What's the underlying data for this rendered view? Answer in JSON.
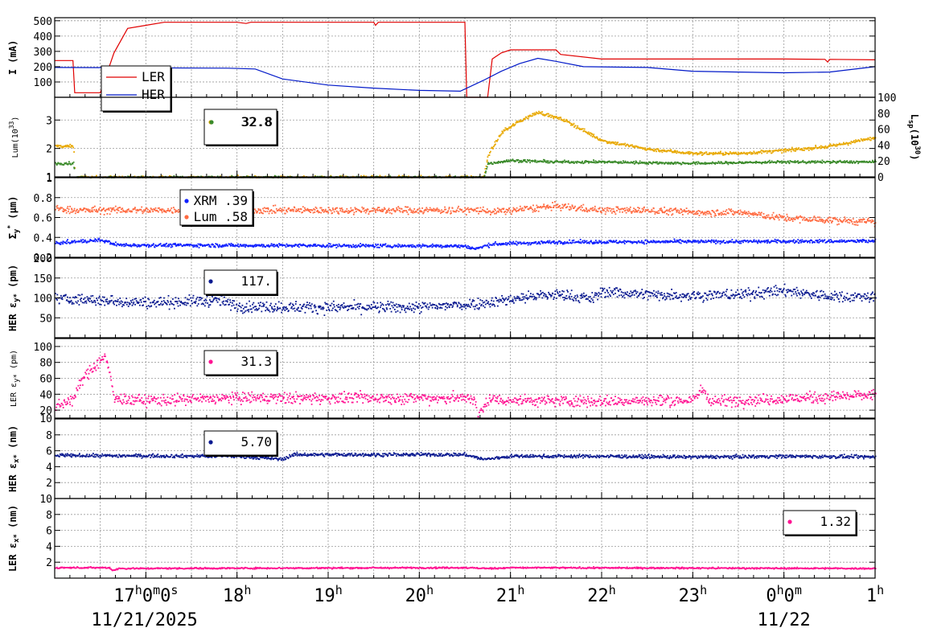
{
  "colors": {
    "ler_current": "#e00000",
    "her_current": "#0018c8",
    "lum_yellow": "#e8a800",
    "lum_green": "#3a8a2a",
    "sigma_xrm": "#1020ff",
    "sigma_lum": "#ff6a40",
    "her_navy": "#0a1a90",
    "ler_pink": "#ff1493",
    "grid": "#9a9a9a"
  },
  "chart_data": {
    "type": "line",
    "x_axis": {
      "range_hours": [
        16.0,
        25.0
      ],
      "ticks": [
        {
          "t": 17,
          "label": "17",
          "sup": "h",
          "extra": [
            {
              "v": "0",
              "s": "m"
            },
            {
              "v": "0",
              "s": "s"
            }
          ]
        },
        {
          "t": 18,
          "label": "18",
          "sup": "h"
        },
        {
          "t": 19,
          "label": "19",
          "sup": "h"
        },
        {
          "t": 20,
          "label": "20",
          "sup": "h"
        },
        {
          "t": 21,
          "label": "21",
          "sup": "h"
        },
        {
          "t": 22,
          "label": "22",
          "sup": "h"
        },
        {
          "t": 23,
          "label": "23",
          "sup": "h"
        },
        {
          "t": 24,
          "label": "0",
          "sup": "h",
          "extra": [
            {
              "v": "0",
              "s": "m"
            }
          ]
        },
        {
          "t": 25,
          "label": "1",
          "sup": "h"
        }
      ],
      "dates": [
        {
          "t": 16.4,
          "label": "11/21/2025"
        },
        {
          "t": 24.0,
          "label": "11/22"
        }
      ]
    },
    "panels": [
      {
        "id": "current",
        "ylabel": "I (mA)",
        "ylim": [
          0,
          520
        ],
        "yticks": [
          100,
          200,
          300,
          400,
          500
        ],
        "legend": {
          "type": "lines",
          "placement": "bottom-left",
          "entries": [
            "LER",
            "HER"
          ]
        },
        "series": [
          {
            "name": "LER",
            "color_key": "ler_current",
            "points": [
              [
                16.0,
                240
              ],
              [
                16.2,
                240
              ],
              [
                16.22,
                30
              ],
              [
                16.5,
                30
              ],
              [
                16.65,
                290
              ],
              [
                16.8,
                450
              ],
              [
                17.0,
                470
              ],
              [
                17.2,
                490
              ],
              [
                18.0,
                490
              ],
              [
                18.1,
                482
              ],
              [
                18.15,
                490
              ],
              [
                19.5,
                490
              ],
              [
                19.52,
                470
              ],
              [
                19.55,
                490
              ],
              [
                20.5,
                490
              ],
              [
                20.52,
                0
              ],
              [
                20.75,
                0
              ],
              [
                20.8,
                250
              ],
              [
                20.9,
                290
              ],
              [
                21.0,
                310
              ],
              [
                21.5,
                310
              ],
              [
                21.55,
                280
              ],
              [
                22.0,
                250
              ],
              [
                24.0,
                250
              ],
              [
                24.45,
                248
              ],
              [
                24.48,
                230
              ],
              [
                24.5,
                248
              ],
              [
                25.0,
                245
              ]
            ]
          },
          {
            "name": "HER",
            "color_key": "her_current",
            "points": [
              [
                16.0,
                195
              ],
              [
                17.9,
                190
              ],
              [
                18.2,
                185
              ],
              [
                18.5,
                120
              ],
              [
                19.0,
                80
              ],
              [
                19.5,
                60
              ],
              [
                20.0,
                45
              ],
              [
                20.45,
                40
              ],
              [
                20.7,
                110
              ],
              [
                20.9,
                170
              ],
              [
                21.1,
                220
              ],
              [
                21.3,
                255
              ],
              [
                21.5,
                235
              ],
              [
                21.8,
                200
              ],
              [
                22.5,
                195
              ],
              [
                23.0,
                170
              ],
              [
                23.5,
                165
              ],
              [
                24.0,
                160
              ],
              [
                24.5,
                165
              ],
              [
                25.0,
                200
              ]
            ]
          }
        ]
      },
      {
        "id": "lum",
        "ylabel": "Lum(10",
        "ylabel_sup": "33",
        "ylabel_end": ")",
        "ylim": [
          1,
          3.8
        ],
        "yticks": [
          1,
          2,
          3
        ],
        "right_axis": {
          "label": "L",
          "sub": "sp",
          "sup": "30",
          "ticks": [
            0,
            20,
            40,
            60,
            80,
            100
          ],
          "range": [
            0,
            100
          ]
        },
        "legend": {
          "type": "dots",
          "entries": [
            {
              "color_key": "lum_yellow",
              "label": "32.8"
            },
            {
              "color_key": "lum_green",
              "label": "32.8"
            }
          ]
        },
        "series": [
          {
            "name": "yellow",
            "color_key": "lum_yellow",
            "noise": 0.05,
            "points": [
              [
                16.0,
                2.1
              ],
              [
                16.2,
                2.1
              ],
              [
                16.22,
                1.0
              ],
              [
                20.7,
                1.0
              ],
              [
                20.75,
                1.8
              ],
              [
                20.9,
                2.6
              ],
              [
                21.1,
                3.0
              ],
              [
                21.3,
                3.3
              ],
              [
                21.6,
                3.0
              ],
              [
                22.0,
                2.3
              ],
              [
                22.5,
                2.0
              ],
              [
                23.0,
                1.85
              ],
              [
                23.5,
                1.85
              ],
              [
                24.0,
                1.95
              ],
              [
                24.5,
                2.1
              ],
              [
                25.0,
                2.4
              ]
            ]
          },
          {
            "name": "green",
            "color_key": "lum_green",
            "noise": 0.04,
            "points": [
              [
                16.0,
                1.5
              ],
              [
                16.2,
                1.5
              ],
              [
                16.22,
                1.0
              ],
              [
                20.7,
                1.0
              ],
              [
                20.75,
                1.5
              ],
              [
                21.0,
                1.6
              ],
              [
                21.5,
                1.55
              ],
              [
                22.0,
                1.55
              ],
              [
                23.0,
                1.5
              ],
              [
                24.0,
                1.55
              ],
              [
                25.0,
                1.55
              ]
            ]
          }
        ]
      },
      {
        "id": "sigma",
        "ylabel": "Σ",
        "ylabel_sub": "y",
        "ylabel_sup": "*",
        "ylabel_end": " (μm)",
        "ylim": [
          0.2,
          1.0
        ],
        "yticks": [
          0.2,
          0.4,
          0.6,
          0.8,
          1
        ],
        "legend": {
          "type": "dots",
          "entries": [
            {
              "color_key": "sigma_xrm",
              "label": "XRM  .39"
            },
            {
              "color_key": "sigma_lum",
              "label": "Lum  .58"
            }
          ]
        },
        "series": [
          {
            "name": "XRM",
            "color_key": "sigma_xrm",
            "noise": 0.015,
            "points": [
              [
                16.0,
                0.35
              ],
              [
                16.5,
                0.38
              ],
              [
                16.7,
                0.33
              ],
              [
                20.5,
                0.32
              ],
              [
                20.6,
                0.29
              ],
              [
                20.8,
                0.34
              ],
              [
                21.5,
                0.36
              ],
              [
                25.0,
                0.37
              ]
            ]
          },
          {
            "name": "Lum",
            "color_key": "sigma_lum",
            "noise": 0.03,
            "points": [
              [
                16.0,
                0.7
              ],
              [
                16.2,
                0.68
              ],
              [
                20.7,
                0.68
              ],
              [
                20.8,
                0.66
              ],
              [
                21.0,
                0.68
              ],
              [
                21.5,
                0.72
              ],
              [
                22.0,
                0.68
              ],
              [
                22.5,
                0.68
              ],
              [
                23.0,
                0.66
              ],
              [
                23.5,
                0.66
              ],
              [
                24.0,
                0.6
              ],
              [
                24.5,
                0.58
              ],
              [
                25.0,
                0.56
              ]
            ]
          }
        ]
      },
      {
        "id": "her_ey",
        "ylabel": "HER ε",
        "ylabel_sub": "y*",
        "ylabel_end": " (pm)",
        "ylim": [
          0,
          200
        ],
        "yticks": [
          50,
          100,
          150,
          200
        ],
        "legend": {
          "type": "dots",
          "entries": [
            {
              "color_key": "her_navy",
              "label": "117."
            }
          ]
        },
        "series": [
          {
            "name": "HER ey",
            "color_key": "her_navy",
            "noise": 12,
            "points": [
              [
                16.0,
                100
              ],
              [
                17.0,
                90
              ],
              [
                17.8,
                95
              ],
              [
                18.0,
                80
              ],
              [
                19.0,
                78
              ],
              [
                20.0,
                78
              ],
              [
                20.5,
                85
              ],
              [
                20.9,
                95
              ],
              [
                21.2,
                105
              ],
              [
                21.5,
                110
              ],
              [
                21.9,
                100
              ],
              [
                22.0,
                118
              ],
              [
                22.5,
                110
              ],
              [
                23.0,
                108
              ],
              [
                23.5,
                110
              ],
              [
                24.0,
                120
              ],
              [
                24.5,
                105
              ],
              [
                25.0,
                105
              ]
            ]
          }
        ]
      },
      {
        "id": "ler_ey",
        "ylabel": "LER ε",
        "ylabel_sub": "y*",
        "ylabel_end": " (pm)",
        "ylim": [
          10,
          110
        ],
        "yticks": [
          10,
          20,
          40,
          60,
          80,
          100
        ],
        "legend": {
          "type": "dots",
          "entries": [
            {
              "color_key": "ler_pink",
              "label": "31.3"
            }
          ]
        },
        "series": [
          {
            "name": "LER ey",
            "color_key": "ler_pink",
            "noise": 6,
            "points": [
              [
                16.0,
                25
              ],
              [
                16.2,
                35
              ],
              [
                16.3,
                60
              ],
              [
                16.55,
                90
              ],
              [
                16.65,
                35
              ],
              [
                17.0,
                33
              ],
              [
                18.0,
                36
              ],
              [
                19.0,
                36
              ],
              [
                20.0,
                36
              ],
              [
                20.6,
                36
              ],
              [
                20.63,
                10
              ],
              [
                20.75,
                35
              ],
              [
                21.0,
                33
              ],
              [
                22.0,
                32
              ],
              [
                23.0,
                33
              ],
              [
                23.1,
                48
              ],
              [
                23.2,
                32
              ],
              [
                24.0,
                35
              ],
              [
                25.0,
                40
              ]
            ]
          }
        ]
      },
      {
        "id": "her_ex",
        "ylabel": "HER ε",
        "ylabel_sub": "x*",
        "ylabel_end": " (nm)",
        "ylim": [
          0,
          10
        ],
        "yticks": [
          2,
          4,
          6,
          8
        ],
        "legend": {
          "type": "dots",
          "entries": [
            {
              "color_key": "her_navy",
              "label": "5.70"
            }
          ]
        },
        "series": [
          {
            "name": "HER ex",
            "color_key": "her_navy",
            "noise": 0.18,
            "points": [
              [
                16.0,
                5.5
              ],
              [
                18.0,
                5.4
              ],
              [
                18.5,
                5.0
              ],
              [
                18.6,
                5.6
              ],
              [
                20.5,
                5.6
              ],
              [
                20.7,
                5.0
              ],
              [
                21.0,
                5.4
              ],
              [
                22.0,
                5.4
              ],
              [
                23.0,
                5.3
              ],
              [
                24.0,
                5.4
              ],
              [
                25.0,
                5.3
              ]
            ]
          }
        ]
      },
      {
        "id": "ler_ex",
        "ylabel": "LER ε",
        "ylabel_sub": "x*",
        "ylabel_end": " (nm)",
        "ylim": [
          0,
          10
        ],
        "yticks": [
          2,
          4,
          6,
          8,
          10
        ],
        "legend": {
          "type": "dots",
          "placement": "right",
          "entries": [
            {
              "color_key": "ler_pink",
              "label": "1.32"
            }
          ]
        },
        "series": [
          {
            "name": "LER ex",
            "color_key": "ler_pink",
            "noise": 0.08,
            "points": [
              [
                16.0,
                1.4
              ],
              [
                16.6,
                1.4
              ],
              [
                16.62,
                1.05
              ],
              [
                16.7,
                1.3
              ],
              [
                20.5,
                1.4
              ],
              [
                20.75,
                1.3
              ],
              [
                21.0,
                1.4
              ],
              [
                25.0,
                1.3
              ]
            ]
          }
        ]
      }
    ]
  }
}
